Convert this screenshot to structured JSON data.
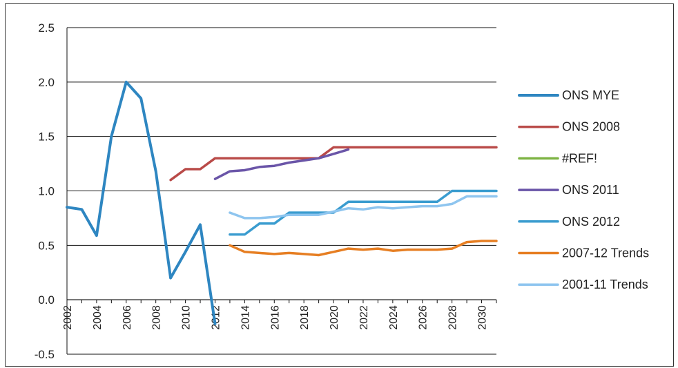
{
  "chart_data": {
    "type": "line",
    "x": [
      2002,
      2003,
      2004,
      2005,
      2006,
      2007,
      2008,
      2009,
      2010,
      2011,
      2012,
      2013,
      2014,
      2015,
      2016,
      2017,
      2018,
      2019,
      2020,
      2021,
      2022,
      2023,
      2024,
      2025,
      2026,
      2027,
      2028,
      2029,
      2030,
      2031
    ],
    "x_tick_labels": [
      "2002",
      "2004",
      "2006",
      "2008",
      "2010",
      "2012",
      "2014",
      "2016",
      "2018",
      "2020",
      "2022",
      "2024",
      "2026",
      "2028",
      "2030"
    ],
    "y_tick_labels": [
      "2.5",
      "2.0",
      "1.5",
      "1.0",
      "0.5",
      "0.0",
      "-0.5"
    ],
    "ylim": [
      -0.5,
      2.5
    ],
    "grid": "horizontal",
    "legend_position": "right",
    "series": [
      {
        "name": "ONS MYE",
        "color": "#2e86c1",
        "width": 4,
        "values": [
          0.85,
          0.83,
          0.59,
          1.5,
          2.0,
          1.85,
          1.18,
          0.2,
          0.44,
          0.69,
          -0.22,
          null,
          null,
          null,
          null,
          null,
          null,
          null,
          null,
          null,
          null,
          null,
          null,
          null,
          null,
          null,
          null,
          null,
          null,
          null
        ]
      },
      {
        "name": "ONS 2008",
        "color": "#b94a48",
        "width": 3.5,
        "values": [
          null,
          null,
          null,
          null,
          null,
          null,
          null,
          1.1,
          1.2,
          1.2,
          1.3,
          1.3,
          1.3,
          1.3,
          1.3,
          1.3,
          1.3,
          1.3,
          1.4,
          1.4,
          1.4,
          1.4,
          1.4,
          1.4,
          1.4,
          1.4,
          1.4,
          1.4,
          1.4,
          1.4
        ]
      },
      {
        "name": "#REF!",
        "color": "#7cb342",
        "width": 3.5,
        "values": [
          null,
          null,
          null,
          null,
          null,
          null,
          null,
          null,
          null,
          null,
          null,
          null,
          null,
          null,
          null,
          null,
          null,
          null,
          null,
          null,
          null,
          null,
          null,
          null,
          null,
          null,
          null,
          null,
          null,
          null
        ]
      },
      {
        "name": "ONS 2011",
        "color": "#6a55a8",
        "width": 3.5,
        "values": [
          null,
          null,
          null,
          null,
          null,
          null,
          null,
          null,
          null,
          null,
          1.11,
          1.18,
          1.19,
          1.22,
          1.23,
          1.26,
          1.28,
          1.3,
          1.34,
          1.38,
          null,
          null,
          null,
          null,
          null,
          null,
          null,
          null,
          null,
          null
        ]
      },
      {
        "name": "ONS 2012",
        "color": "#3a9ccf",
        "width": 3.5,
        "values": [
          null,
          null,
          null,
          null,
          null,
          null,
          null,
          null,
          null,
          null,
          null,
          0.6,
          0.6,
          0.7,
          0.7,
          0.8,
          0.8,
          0.8,
          0.8,
          0.9,
          0.9,
          0.9,
          0.9,
          0.9,
          0.9,
          0.9,
          1.0,
          1.0,
          1.0,
          1.0
        ]
      },
      {
        "name": "2007-12 Trends",
        "color": "#e67e22",
        "width": 3.5,
        "values": [
          null,
          null,
          null,
          null,
          null,
          null,
          null,
          null,
          null,
          null,
          null,
          0.5,
          0.44,
          0.43,
          0.42,
          0.43,
          0.42,
          0.41,
          0.44,
          0.47,
          0.46,
          0.47,
          0.45,
          0.46,
          0.46,
          0.46,
          0.47,
          0.53,
          0.54,
          0.54
        ]
      },
      {
        "name": "2001-11 Trends",
        "color": "#8ec5ef",
        "width": 3.5,
        "values": [
          null,
          null,
          null,
          null,
          null,
          null,
          null,
          null,
          null,
          null,
          null,
          0.8,
          0.75,
          0.75,
          0.76,
          0.78,
          0.78,
          0.78,
          0.81,
          0.84,
          0.83,
          0.85,
          0.84,
          0.85,
          0.86,
          0.86,
          0.88,
          0.95,
          0.95,
          0.95
        ]
      }
    ]
  }
}
